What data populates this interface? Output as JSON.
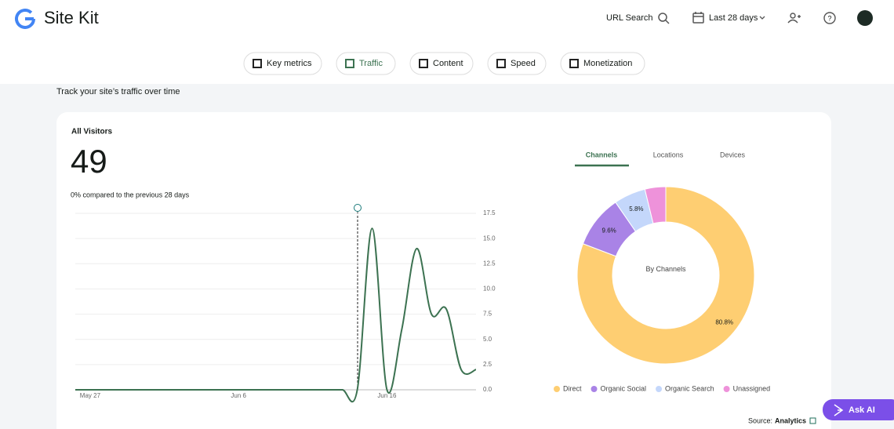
{
  "header": {
    "brand": "Site Kit",
    "url_search": "URL Search",
    "date_range": "Last 28 days"
  },
  "nav": {
    "tabs": [
      "Key metrics",
      "Traffic",
      "Content",
      "Speed",
      "Monetization"
    ]
  },
  "section_subtitle": "Track your site’s traffic over time",
  "card": {
    "title": "All Visitors",
    "total": "49",
    "comparison": "0% compared to the previous 28 days"
  },
  "dimension_tabs": [
    "Channels",
    "Locations",
    "Devices"
  ],
  "source": {
    "label": "Source:",
    "link": "Analytics"
  },
  "ask_ai": "Ask AI",
  "chart_data": [
    {
      "type": "line",
      "categories": [
        null,
        "May 27",
        null,
        null,
        null,
        null,
        null,
        null,
        null,
        null,
        null,
        "Jun 6",
        null,
        null,
        null,
        null,
        null,
        null,
        null,
        null,
        null,
        "Jun 16",
        null,
        null,
        null,
        null,
        null,
        null
      ],
      "series": [
        {
          "name": "All Visitors",
          "color": "#3c7251",
          "values": [
            0,
            0,
            0,
            0,
            0,
            0,
            0,
            0,
            0,
            0,
            0,
            0,
            0,
            0,
            0,
            0,
            0,
            0,
            0,
            0,
            16,
            0,
            6,
            14,
            7.5,
            8,
            2,
            2
          ]
        }
      ],
      "ylim": [
        0,
        17.5
      ],
      "yticks": [
        {
          "value": 0,
          "label": "0.0"
        },
        2.5,
        {
          "value": 5,
          "label": "5.0"
        },
        7.5,
        {
          "value": 10,
          "label": "10.0"
        },
        12.5,
        {
          "value": 15,
          "label": "15.0"
        },
        17.5
      ],
      "grid": true
    },
    {
      "type": "pie",
      "center_label": "By Channels",
      "categories": [
        "Direct",
        "Organic Social",
        "Organic Search",
        "Unassigned"
      ],
      "values": [
        80.8,
        9.6,
        5.8,
        3.8
      ],
      "value_labels": [
        "80.8%",
        "9.6%",
        "5.8%",
        null
      ],
      "colors": [
        "#fece72",
        "#a983e6",
        "#c4d7fb",
        "#ee92da"
      ]
    }
  ]
}
